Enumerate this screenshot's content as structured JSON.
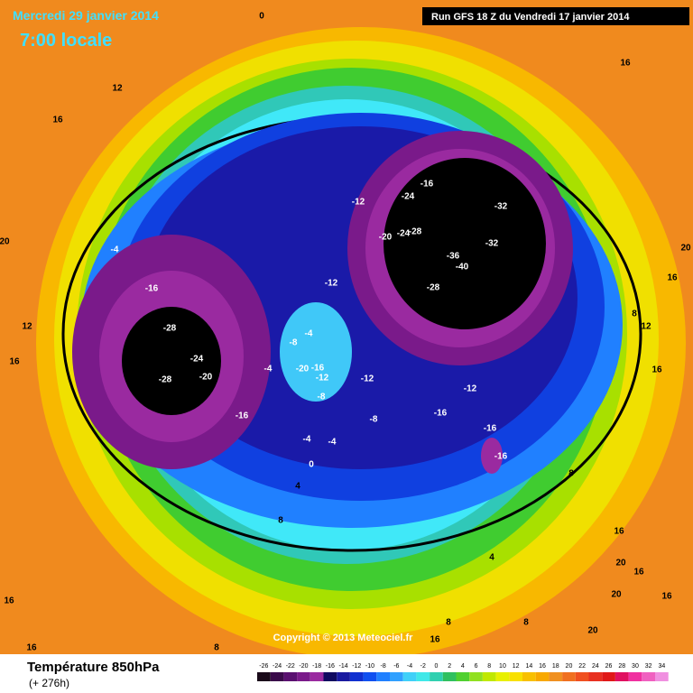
{
  "header": {
    "date": "Mercredi 29 janvier 2014",
    "time": "7:00 locale",
    "run": "Run GFS 18 Z du Vendredi 17 janvier 2014"
  },
  "map": {
    "contour_labels": [
      "0",
      "12",
      "16",
      "16",
      "20",
      "20",
      "16",
      "8",
      "12",
      "16",
      "12",
      "16",
      "-16",
      "-28",
      "-24",
      "-20",
      "-28",
      "-16",
      "-4",
      "-12",
      "-12",
      "-16",
      "-24",
      "-32",
      "-20",
      "-24",
      "-28",
      "-32",
      "-36",
      "-40",
      "-28",
      "-8",
      "-4",
      "-4",
      "-20",
      "-16",
      "-12",
      "-8",
      "-12",
      "-12",
      "-16",
      "-8",
      "-16",
      "-16",
      "-4",
      "-4",
      "0",
      "4",
      "8",
      "8",
      "4",
      "8",
      "8",
      "8",
      "16",
      "16",
      "16",
      "16",
      "20",
      "16",
      "20",
      "16",
      "20"
    ],
    "copyright": "Copyright © 2013 Meteociel.fr"
  },
  "footer": {
    "title": "Température 850hPa",
    "lead": "(+ 276h)"
  },
  "scale": {
    "ticks": [
      -26,
      -24,
      -22,
      -20,
      -18,
      -16,
      -14,
      -12,
      -10,
      -8,
      -6,
      -4,
      -2,
      0,
      2,
      4,
      6,
      8,
      10,
      12,
      14,
      16,
      18,
      20,
      22,
      24,
      26,
      28,
      30,
      32,
      34
    ],
    "colors": [
      "#1a0a1a",
      "#3a0a4a",
      "#5a1070",
      "#7a1a8a",
      "#9a2aa0",
      "#100a60",
      "#1a1aa0",
      "#1030d0",
      "#1050f0",
      "#2080ff",
      "#30a0ff",
      "#40d0f8",
      "#40e8e8",
      "#30d0b0",
      "#30c060",
      "#50d030",
      "#90e020",
      "#c0e800",
      "#e8f000",
      "#f8e000",
      "#f8c000",
      "#f8a800",
      "#f09020",
      "#f07020",
      "#f05020",
      "#e83020",
      "#e01818",
      "#e01060",
      "#f030a0",
      "#f060c0",
      "#f090e0"
    ]
  }
}
